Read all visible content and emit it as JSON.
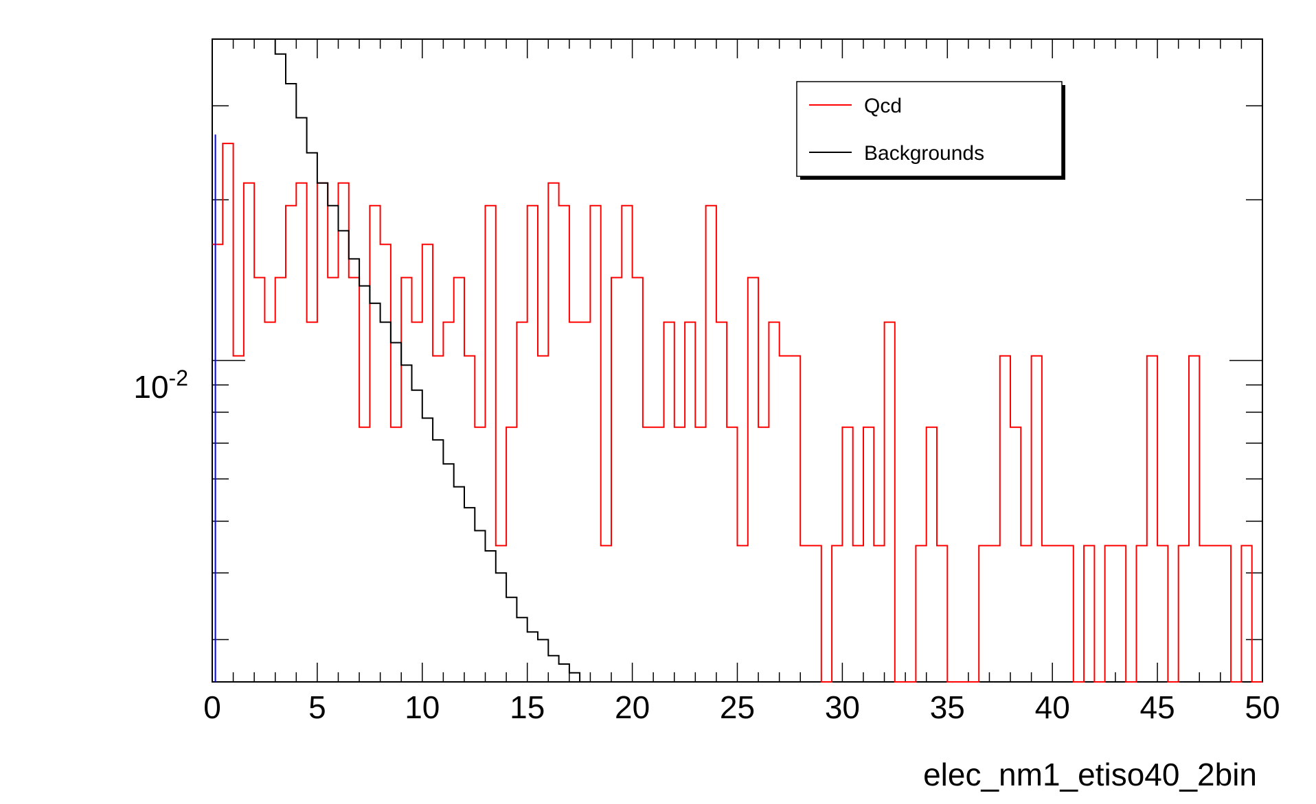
{
  "chart_data": {
    "type": "histogram",
    "xlabel": "elec_nm1_etiso40_2bin",
    "ylabel": "",
    "xlim": [
      0,
      50
    ],
    "ylim": [
      0.0025,
      0.04
    ],
    "ylog": true,
    "bin_width": 0.5,
    "x_ticks": [
      "0",
      "5",
      "10",
      "15",
      "20",
      "25",
      "30",
      "35",
      "40",
      "45",
      "50"
    ],
    "y_tick_label": {
      "base": "10",
      "exp": "-2"
    },
    "legend": {
      "position": "top-right",
      "entries": [
        {
          "label": "Qcd",
          "color": "#ff0000"
        },
        {
          "label": "Backgrounds",
          "color": "#000000"
        }
      ]
    },
    "series": [
      {
        "name": "Qcd",
        "color": "#ff0000",
        "values": [
          0.0165,
          0.0255,
          0.0102,
          0.0215,
          0.0143,
          0.0118,
          0.0143,
          0.0195,
          0.0215,
          0.0118,
          0.0215,
          0.0143,
          0.0215,
          0.0143,
          0.0075,
          0.0195,
          0.0165,
          0.0075,
          0.0143,
          0.0118,
          0.0165,
          0.0102,
          0.0118,
          0.0143,
          0.0102,
          0.0075,
          0.0195,
          0.0045,
          0.0075,
          0.0118,
          0.0195,
          0.0102,
          0.0215,
          0.0195,
          0.0118,
          0.0118,
          0.0195,
          0.0045,
          0.0143,
          0.0195,
          0.0143,
          0.0075,
          0.0075,
          0.0118,
          0.0075,
          0.0118,
          0.0075,
          0.0195,
          0.0118,
          0.0075,
          0.0045,
          0.0143,
          0.0075,
          0.0118,
          0.0102,
          0.0102,
          0.0045,
          0.0045,
          0.0025,
          0.0045,
          0.0075,
          0.0045,
          0.0075,
          0.0045,
          0.0118,
          0.0025,
          0.0025,
          0.0045,
          0.0075,
          0.0045,
          0.0025,
          0.0025,
          0.0025,
          0.0045,
          0.0045,
          0.0102,
          0.0075,
          0.0045,
          0.0102,
          0.0045,
          0.0045,
          0.0045,
          0.0025,
          0.0045,
          0.0025,
          0.0045,
          0.0045,
          0.0025,
          0.0045,
          0.0102,
          0.0045,
          0.0025,
          0.0045,
          0.0102,
          0.0045,
          0.0045,
          0.0045,
          0.0025,
          0.0045,
          0.0025
        ]
      },
      {
        "name": "Backgrounds",
        "color": "#000000",
        "values": [
          0.04,
          0.04,
          0.04,
          0.04,
          0.04,
          0.04,
          0.0375,
          0.033,
          0.0285,
          0.0245,
          0.0215,
          0.0195,
          0.0175,
          0.0155,
          0.0138,
          0.0128,
          0.0118,
          0.0108,
          0.0098,
          0.0088,
          0.0078,
          0.0071,
          0.0064,
          0.0058,
          0.0053,
          0.0048,
          0.0044,
          0.004,
          0.0036,
          0.0033,
          0.0031,
          0.003,
          0.0028,
          0.0027,
          0.0026,
          0.0025,
          0.0025
        ]
      }
    ],
    "marker_line": {
      "x": 0.15,
      "y": 0.0265,
      "color": "#0000ff"
    }
  }
}
